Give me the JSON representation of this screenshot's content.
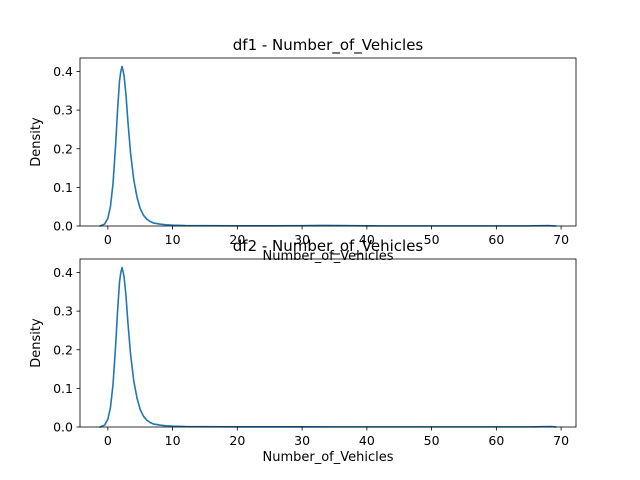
{
  "chart_data": [
    {
      "type": "line",
      "title": "df1 - Number_of_Vehicles",
      "xlabel": "Number_of_Vehicles",
      "ylabel": "Density",
      "xlim": [
        -4.3,
        72.3
      ],
      "ylim": [
        0,
        0.435
      ],
      "xticks": [
        0,
        10,
        20,
        30,
        40,
        50,
        60,
        70
      ],
      "yticks": [
        0.0,
        0.1,
        0.2,
        0.3,
        0.4
      ],
      "ytick_labels": [
        "0.0",
        "0.1",
        "0.2",
        "0.3",
        "0.4"
      ],
      "grid": false,
      "line_color": "#1f77b4",
      "series": [
        {
          "x": [
            -1.2,
            -0.5,
            0.0,
            0.4,
            0.8,
            1.2,
            1.5,
            1.8,
            2.0,
            2.2,
            2.5,
            2.8,
            3.1,
            3.5,
            4.0,
            4.5,
            5.0,
            5.5,
            6.0,
            6.5,
            7.0,
            8.0,
            9.0,
            10.0,
            12.0,
            15.0,
            20.0,
            25.0,
            30.0,
            33.0,
            36.0,
            40.0,
            45.0,
            50.0,
            55.0,
            60.0,
            65.0,
            68.0,
            69.2
          ],
          "y": [
            0.0,
            0.005,
            0.02,
            0.05,
            0.11,
            0.21,
            0.3,
            0.375,
            0.4,
            0.413,
            0.39,
            0.34,
            0.27,
            0.19,
            0.12,
            0.075,
            0.045,
            0.028,
            0.018,
            0.012,
            0.008,
            0.005,
            0.003,
            0.002,
            0.001,
            0.0008,
            0.0005,
            0.0004,
            0.0008,
            0.0015,
            0.001,
            0.0004,
            0.0003,
            0.0003,
            0.0003,
            0.0003,
            0.0003,
            0.001,
            0.0
          ]
        }
      ]
    },
    {
      "type": "line",
      "title": "df2 - Number_of_Vehicles",
      "xlabel": "Number_of_Vehicles",
      "ylabel": "Density",
      "xlim": [
        -4.3,
        72.3
      ],
      "ylim": [
        0,
        0.435
      ],
      "xticks": [
        0,
        10,
        20,
        30,
        40,
        50,
        60,
        70
      ],
      "yticks": [
        0.0,
        0.1,
        0.2,
        0.3,
        0.4
      ],
      "ytick_labels": [
        "0.0",
        "0.1",
        "0.2",
        "0.3",
        "0.4"
      ],
      "grid": false,
      "line_color": "#1f77b4",
      "series": [
        {
          "x": [
            -1.2,
            -0.5,
            0.0,
            0.4,
            0.8,
            1.2,
            1.5,
            1.8,
            2.0,
            2.2,
            2.5,
            2.8,
            3.1,
            3.5,
            4.0,
            4.5,
            5.0,
            5.5,
            6.0,
            6.5,
            7.0,
            8.0,
            9.0,
            10.0,
            12.0,
            15.0,
            20.0,
            25.0,
            30.0,
            35.0,
            40.0,
            45.0,
            50.0,
            55.0,
            60.0,
            65.0,
            67.0,
            68.5,
            69.2
          ],
          "y": [
            0.0,
            0.005,
            0.02,
            0.05,
            0.11,
            0.21,
            0.3,
            0.375,
            0.4,
            0.413,
            0.39,
            0.34,
            0.27,
            0.19,
            0.12,
            0.075,
            0.045,
            0.028,
            0.018,
            0.012,
            0.008,
            0.005,
            0.003,
            0.002,
            0.001,
            0.0008,
            0.0005,
            0.0004,
            0.0004,
            0.0003,
            0.0003,
            0.0003,
            0.0003,
            0.0003,
            0.0003,
            0.0003,
            0.0008,
            0.0012,
            0.0
          ]
        }
      ]
    }
  ]
}
